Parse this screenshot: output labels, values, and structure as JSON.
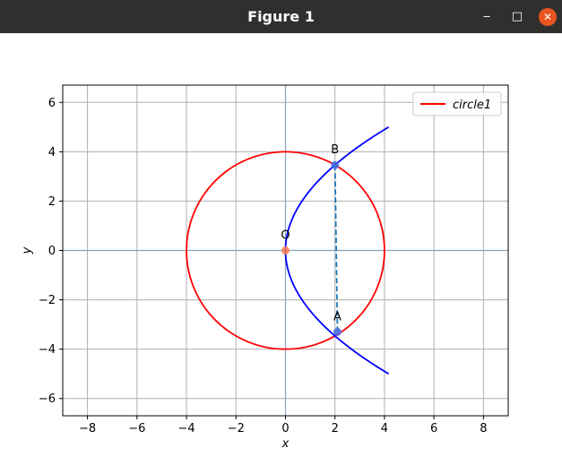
{
  "window": {
    "title": "Figure 1",
    "minimize_glyph": "‒",
    "maximize_glyph": "□",
    "close_glyph": "✕"
  },
  "chart_data": {
    "type": "line",
    "title": "",
    "xlabel": "x",
    "ylabel": "y",
    "xlim": [
      -9,
      9
    ],
    "ylim": [
      -6.7,
      6.7
    ],
    "xticks": [
      -8,
      -6,
      -4,
      -2,
      0,
      2,
      4,
      6,
      8
    ],
    "yticks": [
      -6,
      -4,
      -2,
      0,
      2,
      4,
      6
    ],
    "grid": true,
    "legend": {
      "position": "top-right",
      "entries": [
        {
          "label": "circle1",
          "color": "#ff0000"
        }
      ]
    },
    "series": [
      {
        "name": "circle1",
        "kind": "circle",
        "center": [
          0,
          0
        ],
        "radius": 4,
        "color": "#ff0000"
      },
      {
        "kind": "parabola",
        "equation": "y^2 = 6x",
        "y_range": [
          -5,
          5
        ],
        "color": "#0000ff"
      },
      {
        "kind": "segment",
        "from": [
          2,
          3.46
        ],
        "to": [
          2.1,
          -3.3
        ],
        "color": "#1f77b4",
        "style": "dashed"
      }
    ],
    "points": [
      {
        "label": "O",
        "x": 0,
        "y": 0,
        "color": "#ff7f50"
      },
      {
        "label": "B",
        "x": 2,
        "y": 3.46,
        "color": "#4169e1"
      },
      {
        "label": "A",
        "x": 2.1,
        "y": -3.3,
        "color": "#4169e1"
      }
    ]
  }
}
